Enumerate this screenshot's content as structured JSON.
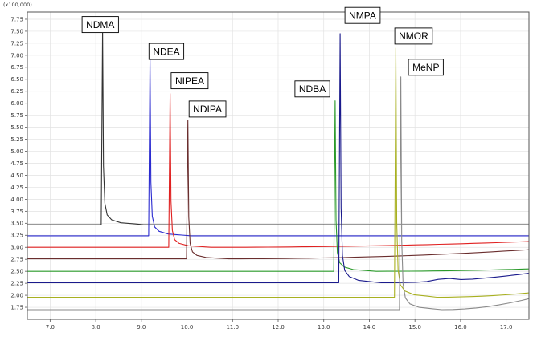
{
  "chart_data": {
    "type": "line",
    "title": "",
    "xlabel": "",
    "ylabel": "",
    "scale_label": "(x100,000)",
    "xlim": [
      6.5,
      17.5
    ],
    "ylim": [
      1.5,
      7.9
    ],
    "x_ticks": [
      "7.0",
      "8.0",
      "9.0",
      "10.0",
      "11.0",
      "12.0",
      "13.0",
      "14.0",
      "15.0",
      "16.0",
      "17.0"
    ],
    "y_ticks": [
      "1.75",
      "2.00",
      "2.25",
      "2.50",
      "2.75",
      "3.00",
      "3.25",
      "3.50",
      "3.75",
      "4.00",
      "4.25",
      "4.50",
      "4.75",
      "5.00",
      "5.25",
      "5.50",
      "5.75",
      "6.00",
      "6.25",
      "6.50",
      "6.75",
      "7.00",
      "7.25",
      "7.50",
      "7.75"
    ],
    "grid": true,
    "series": [
      {
        "name": "NDMA",
        "color": "#333333",
        "baseline": 3.47,
        "peak_x": 8.15,
        "peak_y": 7.55,
        "end_y": 3.47
      },
      {
        "name": "NDEA",
        "color": "#2a2ad0",
        "baseline": 3.24,
        "peak_x": 9.19,
        "peak_y": 6.95,
        "end_y": 3.24
      },
      {
        "name": "NIPEA",
        "color": "#e02020",
        "baseline": 3.0,
        "peak_x": 9.63,
        "peak_y": 6.2,
        "end_y": 3.12
      },
      {
        "name": "NDIPA",
        "color": "#6a2e2e",
        "baseline": 2.76,
        "peak_x": 10.02,
        "peak_y": 5.65,
        "end_y": 2.95
      },
      {
        "name": "NDBA",
        "color": "#2a9a2a",
        "baseline": 2.5,
        "peak_x": 13.25,
        "peak_y": 6.05,
        "end_y": 2.55
      },
      {
        "name": "NMPA",
        "color": "#1a1a8c",
        "baseline": 2.26,
        "peak_x": 13.36,
        "peak_y": 7.45,
        "end_y": 2.46
      },
      {
        "name": "NMOR",
        "color": "#a8b020",
        "baseline": 1.96,
        "peak_x": 14.58,
        "peak_y": 7.15,
        "end_y": 2.05
      },
      {
        "name": "MeNP",
        "color": "#8a8a8a",
        "baseline": 1.7,
        "peak_x": 14.69,
        "peak_y": 6.55,
        "end_y": 1.93
      }
    ],
    "annotations": [
      {
        "text": "NDMA",
        "x": 8.1,
        "y": 7.64
      },
      {
        "text": "NDEA",
        "x": 9.55,
        "y": 7.08
      },
      {
        "text": "NIPEA",
        "x": 10.06,
        "y": 6.47
      },
      {
        "text": "NDIPA",
        "x": 10.45,
        "y": 5.88
      },
      {
        "text": "NDBA",
        "x": 12.75,
        "y": 6.3
      },
      {
        "text": "NMPA",
        "x": 13.85,
        "y": 7.83
      },
      {
        "text": "NMOR",
        "x": 14.97,
        "y": 7.4
      },
      {
        "text": "MeNP",
        "x": 15.24,
        "y": 6.75
      }
    ]
  }
}
